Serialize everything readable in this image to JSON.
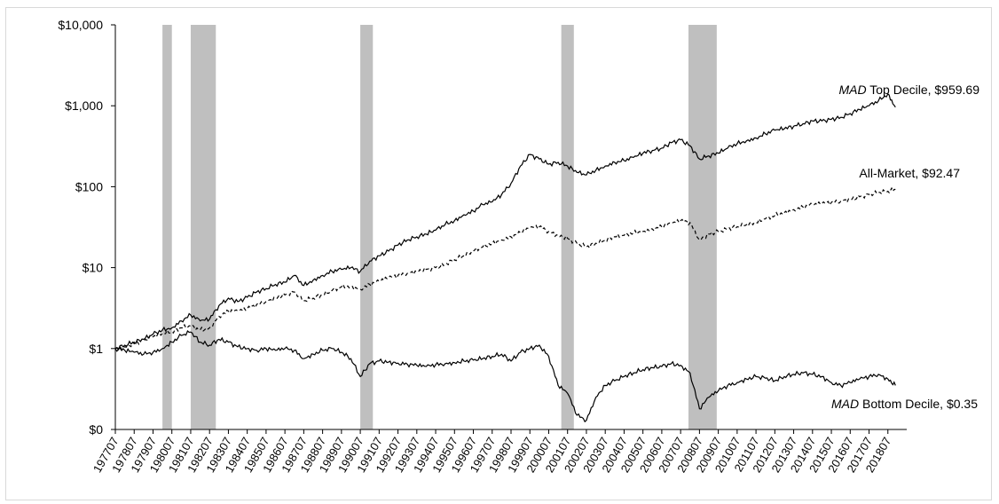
{
  "chart_data": {
    "type": "line",
    "title": "",
    "xlabel": "",
    "ylabel": "",
    "y_scale": "log",
    "y_ticks": [
      {
        "value": 0.1,
        "label": "$0"
      },
      {
        "value": 1,
        "label": "$1"
      },
      {
        "value": 10,
        "label": "$10"
      },
      {
        "value": 100,
        "label": "$100"
      },
      {
        "value": 1000,
        "label": "$1,000"
      },
      {
        "value": 10000,
        "label": "$10,000"
      }
    ],
    "ylim": [
      0.1,
      10000
    ],
    "xlim": [
      1977.5,
      2019.5
    ],
    "x_tick_labels": [
      "197707",
      "197807",
      "197907",
      "198007",
      "198107",
      "198207",
      "198307",
      "198407",
      "198507",
      "198607",
      "198707",
      "198807",
      "198907",
      "199007",
      "199107",
      "199207",
      "199307",
      "199407",
      "199507",
      "199607",
      "199707",
      "199807",
      "199907",
      "200007",
      "200107",
      "200207",
      "200307",
      "200407",
      "200507",
      "200607",
      "200707",
      "200807",
      "200907",
      "201007",
      "201107",
      "201207",
      "201307",
      "201407",
      "201507",
      "201607",
      "201707",
      "201807"
    ],
    "grid": false,
    "legend": "none",
    "shaded_periods": [
      {
        "start": "198001",
        "end": "198007"
      },
      {
        "start": "198107",
        "end": "198211"
      },
      {
        "start": "199007",
        "end": "199103"
      },
      {
        "start": "200103",
        "end": "200111"
      },
      {
        "start": "200712",
        "end": "200906"
      }
    ],
    "annotations": [
      {
        "italic": "MAD",
        "text": " Top Decile, $959.69"
      },
      {
        "italic": "",
        "text": "All-Market, $92.47"
      },
      {
        "italic": "MAD",
        "text": " Bottom  Decile, $0.35"
      }
    ],
    "series": [
      {
        "style": "solid",
        "x": [
          1977.5,
          1978,
          1978.5,
          1979,
          1979.5,
          1980,
          1980.5,
          1981,
          1981.5,
          1982,
          1982.5,
          1983,
          1983.5,
          1984,
          1984.5,
          1985,
          1985.5,
          1986,
          1986.5,
          1987,
          1987.5,
          1988,
          1988.5,
          1989,
          1989.5,
          1990,
          1990.5,
          1991,
          1991.5,
          1992,
          1992.5,
          1993,
          1993.5,
          1994,
          1994.5,
          1995,
          1995.5,
          1996,
          1996.5,
          1997,
          1997.5,
          1998,
          1998.5,
          1999,
          1999.5,
          2000,
          2000.5,
          2001,
          2001.5,
          2002,
          2002.5,
          2003,
          2003.5,
          2004,
          2004.5,
          2005,
          2005.5,
          2006,
          2006.5,
          2007,
          2007.5,
          2008,
          2008.5,
          2009,
          2009.5,
          2010,
          2010.5,
          2011,
          2011.5,
          2012,
          2012.5,
          2013,
          2013.5,
          2014,
          2014.5,
          2015,
          2015.5,
          2016,
          2016.5,
          2017,
          2017.5,
          2018,
          2018.5,
          2018.9
        ],
        "values": [
          1,
          1.1,
          1.2,
          1.3,
          1.5,
          1.7,
          1.8,
          2.2,
          2.6,
          2.2,
          2.3,
          3.4,
          4.2,
          3.8,
          4.3,
          5,
          5.5,
          6.2,
          6.6,
          8,
          6,
          7,
          8,
          9,
          9.5,
          10,
          9,
          12,
          14,
          16,
          19,
          22,
          24,
          26,
          29,
          34,
          38,
          45,
          50,
          60,
          65,
          80,
          110,
          180,
          250,
          220,
          190,
          200,
          180,
          150,
          140,
          160,
          180,
          200,
          210,
          230,
          260,
          280,
          300,
          350,
          380,
          320,
          220,
          240,
          260,
          300,
          340,
          370,
          400,
          450,
          500,
          520,
          560,
          600,
          650,
          650,
          680,
          720,
          800,
          900,
          1000,
          1150,
          1400,
          960
        ]
      },
      {
        "style": "dashed",
        "x": [
          1977.5,
          1978,
          1978.5,
          1979,
          1979.5,
          1980,
          1980.5,
          1981,
          1981.5,
          1982,
          1982.5,
          1983,
          1983.5,
          1984,
          1984.5,
          1985,
          1985.5,
          1986,
          1986.5,
          1987,
          1987.5,
          1988,
          1988.5,
          1989,
          1989.5,
          1990,
          1990.5,
          1991,
          1991.5,
          1992,
          1992.5,
          1993,
          1993.5,
          1994,
          1994.5,
          1995,
          1995.5,
          1996,
          1996.5,
          1997,
          1997.5,
          1998,
          1998.5,
          1999,
          1999.5,
          2000,
          2000.5,
          2001,
          2001.5,
          2002,
          2002.5,
          2003,
          2003.5,
          2004,
          2004.5,
          2005,
          2005.5,
          2006,
          2006.5,
          2007,
          2007.5,
          2008,
          2008.5,
          2009,
          2009.5,
          2010,
          2010.5,
          2011,
          2011.5,
          2012,
          2012.5,
          2013,
          2013.5,
          2014,
          2014.5,
          2015,
          2015.5,
          2016,
          2016.5,
          2017,
          2017.5,
          2018,
          2018.5,
          2018.9
        ],
        "values": [
          1,
          1.05,
          1.15,
          1.25,
          1.4,
          1.55,
          1.6,
          1.8,
          1.9,
          1.7,
          1.8,
          2.5,
          2.9,
          2.9,
          3.1,
          3.5,
          3.8,
          4.2,
          4.6,
          5,
          3.9,
          4.2,
          4.6,
          5.2,
          5.8,
          5.8,
          5.4,
          6.2,
          6.8,
          7.5,
          8,
          8.5,
          9,
          9.5,
          10,
          11,
          12.5,
          14,
          16,
          18,
          20,
          22,
          24,
          27,
          31,
          32,
          28,
          25,
          23,
          20,
          18,
          20,
          22,
          24,
          25,
          27,
          28,
          30,
          32,
          35,
          38,
          36,
          22,
          26,
          28,
          30,
          32,
          34,
          36,
          40,
          44,
          48,
          52,
          56,
          60,
          62,
          64,
          66,
          70,
          75,
          80,
          85,
          88,
          92.47
        ]
      },
      {
        "style": "solid",
        "x": [
          1977.5,
          1978,
          1978.5,
          1979,
          1979.5,
          1980,
          1980.5,
          1981,
          1981.5,
          1982,
          1982.5,
          1983,
          1983.5,
          1984,
          1984.5,
          1985,
          1985.5,
          1986,
          1986.5,
          1987,
          1987.5,
          1988,
          1988.5,
          1989,
          1989.5,
          1990,
          1990.5,
          1991,
          1991.5,
          1992,
          1992.5,
          1993,
          1993.5,
          1994,
          1994.5,
          1995,
          1995.5,
          1996,
          1996.5,
          1997,
          1997.5,
          1998,
          1998.5,
          1999,
          1999.5,
          2000,
          2000.5,
          2001,
          2001.5,
          2002,
          2002.5,
          2003,
          2003.5,
          2004,
          2004.5,
          2005,
          2005.5,
          2006,
          2006.5,
          2007,
          2007.5,
          2008,
          2008.5,
          2009,
          2009.5,
          2010,
          2010.5,
          2011,
          2011.5,
          2012,
          2012.5,
          2013,
          2013.5,
          2014,
          2014.5,
          2015,
          2015.5,
          2016,
          2016.5,
          2017,
          2017.5,
          2018,
          2018.5,
          2018.9
        ],
        "values": [
          1,
          0.95,
          0.9,
          0.85,
          0.9,
          1,
          1.2,
          1.45,
          1.6,
          1.2,
          1.1,
          1.3,
          1.2,
          1.05,
          1,
          0.95,
          1,
          0.95,
          1,
          0.95,
          0.75,
          0.85,
          0.95,
          1,
          0.9,
          0.75,
          0.45,
          0.65,
          0.7,
          0.68,
          0.66,
          0.64,
          0.62,
          0.6,
          0.63,
          0.65,
          0.67,
          0.7,
          0.72,
          0.75,
          0.8,
          0.85,
          0.7,
          0.9,
          1,
          1.1,
          0.8,
          0.35,
          0.28,
          0.15,
          0.13,
          0.25,
          0.35,
          0.4,
          0.45,
          0.5,
          0.55,
          0.58,
          0.6,
          0.65,
          0.62,
          0.5,
          0.18,
          0.25,
          0.3,
          0.35,
          0.38,
          0.42,
          0.45,
          0.43,
          0.4,
          0.45,
          0.48,
          0.5,
          0.48,
          0.45,
          0.38,
          0.35,
          0.38,
          0.42,
          0.45,
          0.48,
          0.42,
          0.35
        ]
      }
    ]
  }
}
